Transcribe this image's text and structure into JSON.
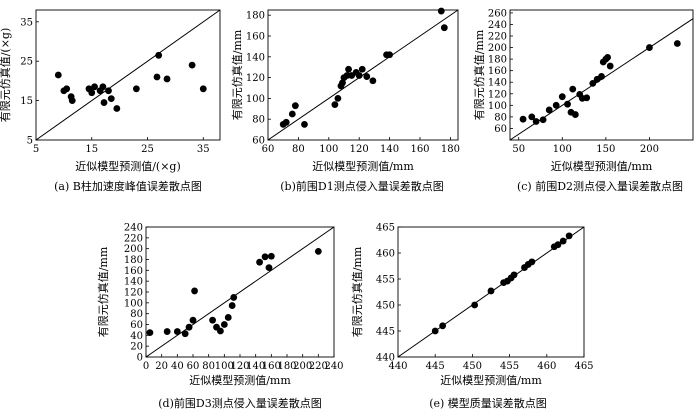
{
  "chart_data": [
    {
      "type": "scatter",
      "caption": "(a) B柱加速度峰值误差散点图",
      "xlabel": "近似模型预测值/(×g)",
      "ylabel": "有限元仿真值/(×g)",
      "xlim": [
        5,
        38
      ],
      "ylim": [
        5,
        38
      ],
      "xticks": [
        5,
        15,
        25,
        35
      ],
      "yticks": [
        5,
        15,
        25,
        35
      ],
      "reference_line": "y = x",
      "points": [
        [
          9,
          21.5
        ],
        [
          10,
          17.5
        ],
        [
          10.5,
          18
        ],
        [
          11.3,
          16
        ],
        [
          11.5,
          15
        ],
        [
          14.5,
          18
        ],
        [
          15,
          17
        ],
        [
          15.5,
          18.5
        ],
        [
          16.5,
          17.5
        ],
        [
          17,
          18.5
        ],
        [
          17.2,
          14.5
        ],
        [
          18,
          17.5
        ],
        [
          18.5,
          15.5
        ],
        [
          19.5,
          13
        ],
        [
          23,
          18
        ],
        [
          26.7,
          21
        ],
        [
          27,
          26.5
        ],
        [
          28.5,
          20.5
        ],
        [
          33,
          24
        ],
        [
          35,
          18
        ]
      ]
    },
    {
      "type": "scatter",
      "caption": "(b)前围D1测点侵入量误差散点图",
      "xlabel": "近似模型预测值/mm",
      "ylabel": "有限元仿真值/mm",
      "xlim": [
        60,
        185
      ],
      "ylim": [
        60,
        185
      ],
      "xticks": [
        60,
        80,
        100,
        120,
        140,
        160,
        180
      ],
      "yticks": [
        60,
        80,
        100,
        120,
        140,
        160,
        180
      ],
      "reference_line": "y = x",
      "points": [
        [
          70,
          75
        ],
        [
          72,
          77
        ],
        [
          76,
          85
        ],
        [
          78,
          93
        ],
        [
          84,
          75
        ],
        [
          104,
          94
        ],
        [
          106,
          100
        ],
        [
          108,
          112
        ],
        [
          109,
          115
        ],
        [
          110,
          120
        ],
        [
          112,
          122
        ],
        [
          113,
          128
        ],
        [
          115,
          122
        ],
        [
          118,
          125
        ],
        [
          120,
          122
        ],
        [
          122,
          128
        ],
        [
          125,
          121
        ],
        [
          129,
          117
        ],
        [
          138,
          142
        ],
        [
          140,
          142
        ],
        [
          174,
          184
        ],
        [
          176,
          168
        ]
      ]
    },
    {
      "type": "scatter",
      "caption": "(c) 前围D2测点侵入量误差散点图",
      "xlabel": "近似模型预测值/mm",
      "ylabel": "有限元仿真值/mm",
      "xlim": [
        40,
        250
      ],
      "ylim": [
        40,
        265
      ],
      "xticks": [
        50,
        100,
        150,
        200
      ],
      "yticks": [
        60,
        80,
        100,
        120,
        140,
        160,
        180,
        200,
        220,
        240,
        260
      ],
      "reference_line": "y = x",
      "points": [
        [
          55,
          76
        ],
        [
          65,
          80
        ],
        [
          70,
          72
        ],
        [
          78,
          75
        ],
        [
          85,
          92
        ],
        [
          93,
          100
        ],
        [
          100,
          115
        ],
        [
          106,
          102
        ],
        [
          110,
          88
        ],
        [
          112,
          128
        ],
        [
          115,
          84
        ],
        [
          120,
          119
        ],
        [
          123,
          112
        ],
        [
          128,
          113
        ],
        [
          135,
          138
        ],
        [
          140,
          145
        ],
        [
          145,
          150
        ],
        [
          147,
          175
        ],
        [
          150,
          180
        ],
        [
          152,
          183
        ],
        [
          155,
          168
        ],
        [
          200,
          200
        ],
        [
          232,
          207
        ]
      ]
    },
    {
      "type": "scatter",
      "caption": "(d)前围D3测点侵入量误差散点图",
      "xlabel": "近似模型预测值/mm",
      "ylabel": "有限元仿真值/mm",
      "xlim": [
        0,
        240
      ],
      "ylim": [
        0,
        240
      ],
      "xticks": [
        0,
        20,
        40,
        60,
        80,
        100,
        120,
        140,
        160,
        180,
        200,
        220,
        240
      ],
      "yticks": [
        0,
        20,
        40,
        60,
        80,
        100,
        120,
        140,
        160,
        180,
        200,
        220,
        240
      ],
      "reference_line": "y = x",
      "points": [
        [
          5,
          45
        ],
        [
          27,
          47
        ],
        [
          40,
          47
        ],
        [
          50,
          43
        ],
        [
          55,
          55
        ],
        [
          60,
          68
        ],
        [
          62,
          122
        ],
        [
          85,
          68
        ],
        [
          90,
          55
        ],
        [
          95,
          48
        ],
        [
          100,
          60
        ],
        [
          105,
          73
        ],
        [
          110,
          95
        ],
        [
          112,
          110
        ],
        [
          145,
          175
        ],
        [
          152,
          185
        ],
        [
          157,
          165
        ],
        [
          160,
          186
        ],
        [
          220,
          195
        ]
      ]
    },
    {
      "type": "scatter",
      "caption": "(e) 模型质量误差散点图",
      "xlabel": "近似模型预测值/mm",
      "ylabel": "有限元仿真值/mm",
      "xlim": [
        440,
        465
      ],
      "ylim": [
        440,
        465
      ],
      "xticks": [
        440,
        445,
        450,
        455,
        460,
        465
      ],
      "yticks": [
        440,
        445,
        450,
        455,
        460,
        465
      ],
      "reference_line": "y = x",
      "points": [
        [
          445,
          445
        ],
        [
          446,
          446
        ],
        [
          450.3,
          450
        ],
        [
          452.5,
          452.7
        ],
        [
          454.2,
          454.3
        ],
        [
          454.7,
          454.6
        ],
        [
          455.2,
          455.2
        ],
        [
          455.6,
          455.8
        ],
        [
          457,
          457.2
        ],
        [
          457.5,
          457.8
        ],
        [
          458,
          458.3
        ],
        [
          461,
          461.2
        ],
        [
          461.5,
          461.6
        ],
        [
          462.2,
          462.3
        ],
        [
          463,
          463.3
        ]
      ]
    }
  ]
}
